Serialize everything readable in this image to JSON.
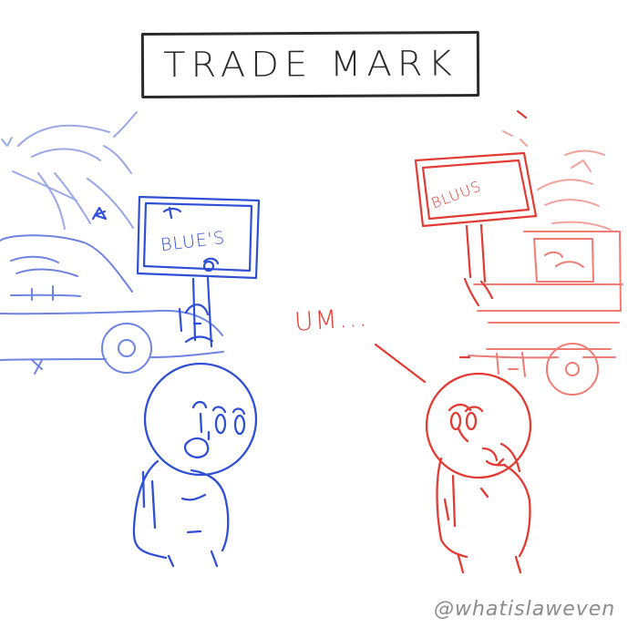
{
  "comic": {
    "title": "TRADE MARK",
    "speech": "UM...",
    "left_sign": "BLUE'S",
    "right_sign": "BLUUS",
    "watermark": "@whatislaweven"
  },
  "colors": {
    "background": "#ffffff",
    "title_ink": "#2a2a2a",
    "blue_ink": "#2f4fd6",
    "red_ink": "#e23b33",
    "watermark_gray": "#8b8b8b"
  },
  "icons": [
    "blue-sparkle-icon",
    "blue-sign-emblem-icon",
    "red-surprise-icon"
  ]
}
